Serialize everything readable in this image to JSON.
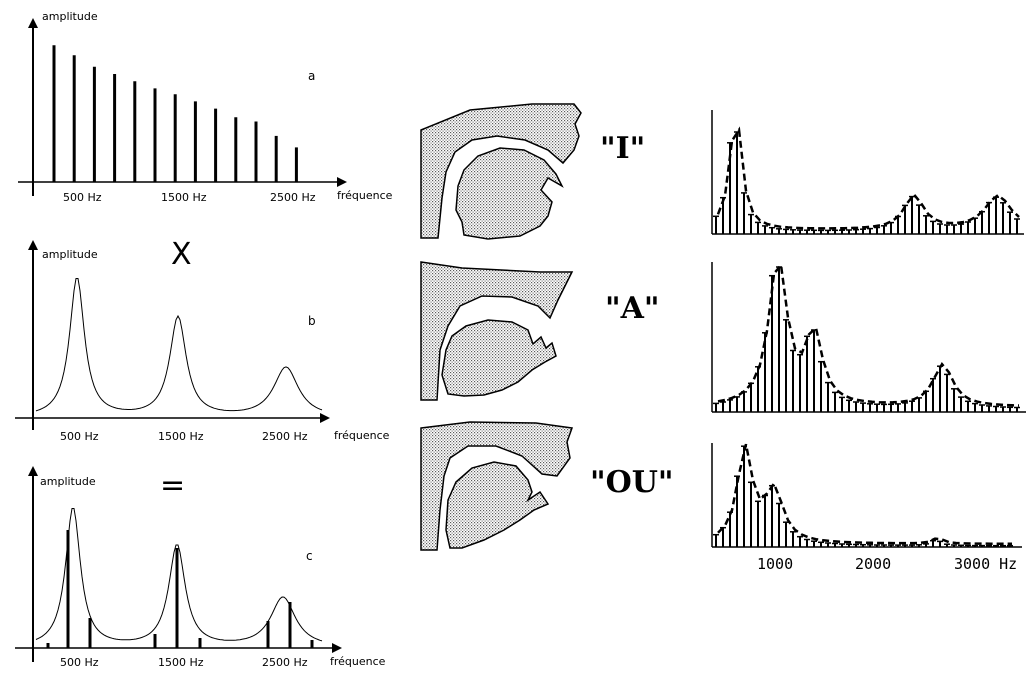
{
  "left_panels": {
    "amplitude_label": "amplitude",
    "frequency_label": "fréquence",
    "x_ticks": [
      "500 Hz",
      "1500 Hz",
      "2500 Hz"
    ],
    "panel_a": {
      "letter": "a",
      "harmonic_heights": [
        0.95,
        0.88,
        0.8,
        0.75,
        0.7,
        0.65,
        0.61,
        0.56,
        0.51,
        0.45,
        0.42,
        0.32,
        0.24
      ]
    },
    "operator_multiply": "X",
    "panel_b": {
      "letter": "b",
      "formant_peaks_hz": [
        500,
        1500,
        2500
      ],
      "formant_heights": [
        1.0,
        0.72,
        0.37
      ]
    },
    "operator_equals": "=",
    "panel_c": {
      "letter": "c"
    }
  },
  "vowels": [
    {
      "label": "\"I\"",
      "tongue": "front-high",
      "spectrum": "i"
    },
    {
      "label": "\"A\"",
      "tongue": "low",
      "spectrum": "a"
    },
    {
      "label": "\"OU\"",
      "tongue": "back-high",
      "spectrum": "ou"
    }
  ],
  "right_axis": {
    "ticks": [
      "1000",
      "2000",
      "3000 Hz"
    ]
  },
  "colors": {
    "ink": "#000000",
    "stipple": "#8a8a8a",
    "background": "#ffffff"
  }
}
